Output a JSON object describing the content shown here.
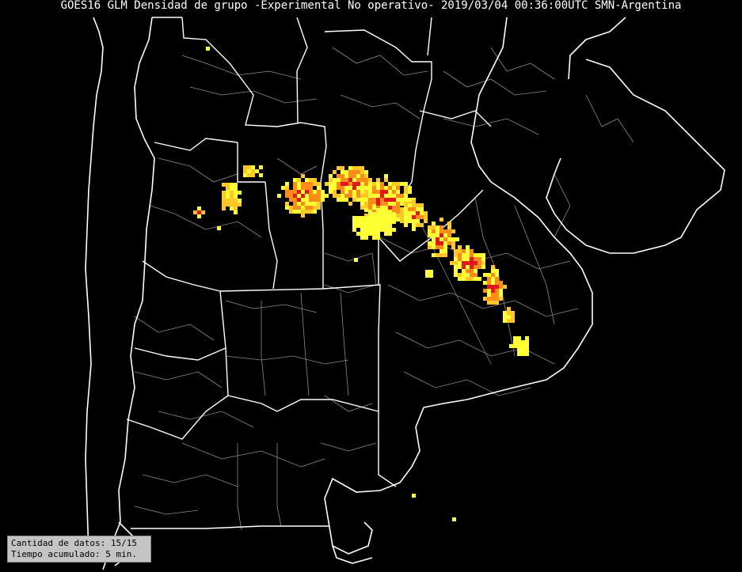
{
  "title": "GOES16 GLM Densidad de grupo -Experimental No operativo- 2019/03/04 00:36:00UTC SMN-Argentina",
  "info": {
    "count_line": "Cantidad de datos: 15/15",
    "time_line": "Tiempo acumulado:  5 min."
  },
  "colors": {
    "background": "#000000",
    "country_border": "#ffffff",
    "province_border": "#ffffff",
    "department_border": "#8c8c8c",
    "density_low": "#ffff33",
    "density_mid": "#ffc826",
    "density_high": "#ff8c1a",
    "density_max": "#e6141e"
  },
  "map_layers": [
    "country-borders",
    "province-borders",
    "department-borders",
    "lightning-group-density"
  ]
}
